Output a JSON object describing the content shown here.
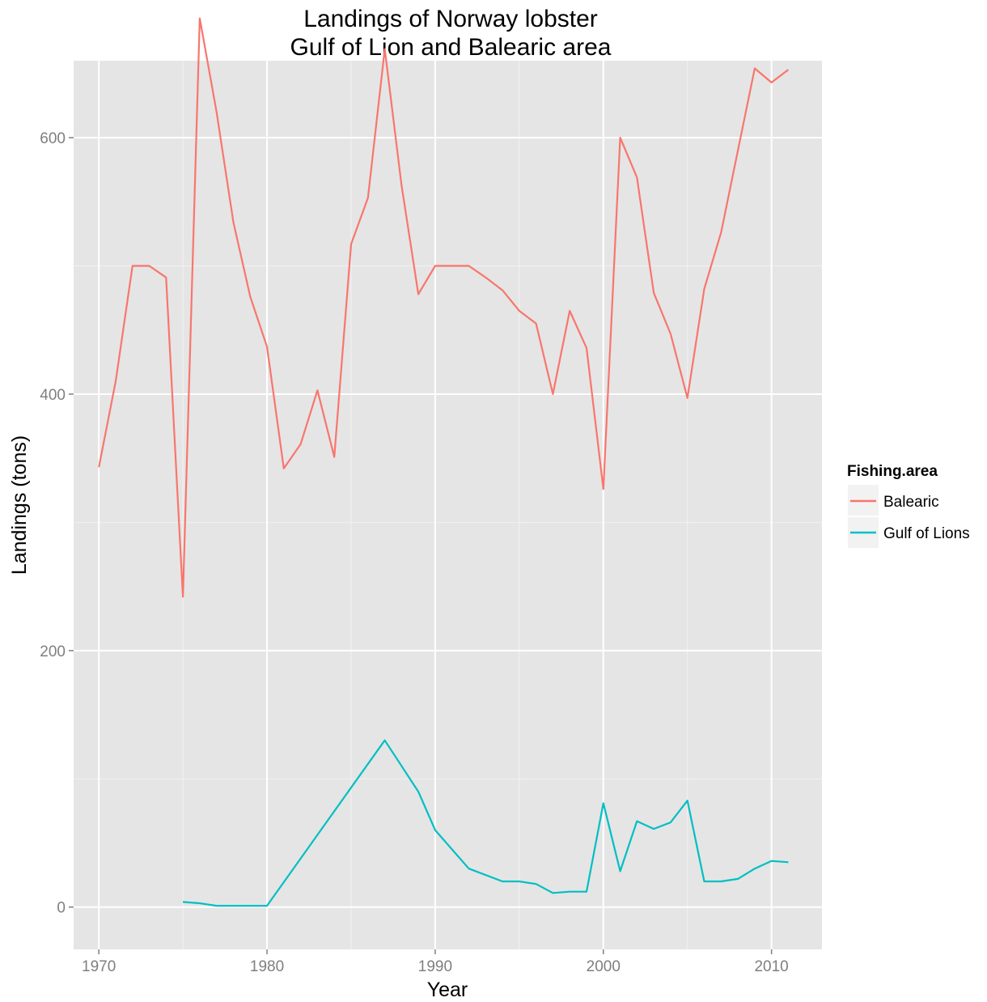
{
  "chart_data": {
    "type": "line",
    "title": [
      "Landings of Norway lobster",
      "Gulf of Lion and Balearic area"
    ],
    "xlabel": "Year",
    "ylabel": "Landings (tons)",
    "xlim": [
      1968.5,
      2013
    ],
    "ylim": [
      -33,
      660
    ],
    "x_ticks": [
      1970,
      1980,
      1990,
      2000,
      2010
    ],
    "y_ticks": [
      0,
      200,
      400,
      600
    ],
    "grid": true,
    "legend": {
      "title": "Fishing.area",
      "position": "right"
    },
    "series": [
      {
        "name": "Balearic",
        "color": "#F8766D",
        "x": [
          1970,
          1971,
          1972,
          1973,
          1974,
          1975,
          1976,
          1977,
          1978,
          1979,
          1980,
          1981,
          1982,
          1983,
          1984,
          1985,
          1986,
          1987,
          1988,
          1989,
          1990,
          1991,
          1992,
          1993,
          1994,
          1995,
          1996,
          1997,
          1998,
          1999,
          2000,
          2001,
          2002,
          2003,
          2004,
          2005,
          2006,
          2007,
          2008,
          2009,
          2010,
          2011
        ],
        "y": [
          343,
          410,
          500,
          500,
          491,
          242,
          693,
          620,
          534,
          476,
          437,
          342,
          361,
          403,
          351,
          517,
          553,
          669,
          563,
          478,
          500,
          500,
          500,
          491,
          481,
          465,
          455,
          400,
          465,
          436,
          326,
          600,
          569,
          479,
          447,
          397,
          482,
          526,
          590,
          654,
          643,
          653
        ]
      },
      {
        "name": "Gulf of Lions",
        "color": "#00BFC4",
        "x": [
          1975,
          1976,
          1977,
          1978,
          1979,
          1980,
          1987,
          1989,
          1990,
          1992,
          1994,
          1995,
          1996,
          1997,
          1998,
          1999,
          2000,
          2001,
          2002,
          2003,
          2004,
          2005,
          2006,
          2007,
          2008,
          2009,
          2010,
          2011
        ],
        "y": [
          4,
          3,
          1,
          1,
          1,
          1,
          130,
          90,
          60,
          30,
          20,
          20,
          18,
          11,
          12,
          12,
          81,
          28,
          67,
          61,
          66,
          83,
          20,
          20,
          22,
          30,
          36,
          35
        ]
      }
    ]
  }
}
